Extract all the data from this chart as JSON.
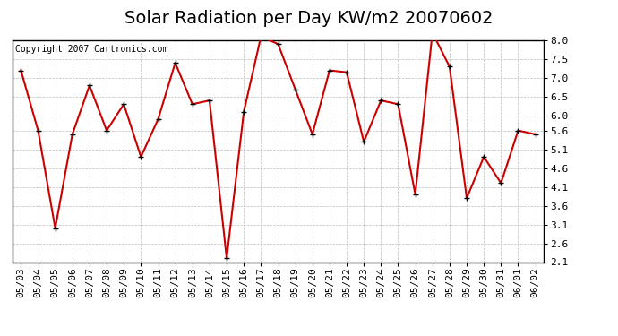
{
  "title": "Solar Radiation per Day KW/m2 20070602",
  "copyright": "Copyright 2007 Cartronics.com",
  "dates": [
    "05/03",
    "05/04",
    "05/05",
    "05/06",
    "05/07",
    "05/08",
    "05/09",
    "05/10",
    "05/11",
    "05/12",
    "05/13",
    "05/14",
    "05/15",
    "05/16",
    "05/17",
    "05/18",
    "05/19",
    "05/20",
    "05/21",
    "05/22",
    "05/23",
    "05/24",
    "05/25",
    "05/26",
    "05/27",
    "05/28",
    "05/29",
    "05/30",
    "05/31",
    "06/01",
    "06/02"
  ],
  "values": [
    7.2,
    5.6,
    3.0,
    5.5,
    6.8,
    5.6,
    6.3,
    4.9,
    5.9,
    7.4,
    6.3,
    6.4,
    2.2,
    6.1,
    8.1,
    7.9,
    6.7,
    5.5,
    7.2,
    7.15,
    5.3,
    6.4,
    6.3,
    3.9,
    8.2,
    7.3,
    3.8,
    4.9,
    4.2,
    5.6,
    5.5
  ],
  "line_color": "#cc0000",
  "marker_color": "#000000",
  "bg_color": "#ffffff",
  "grid_color": "#bbbbbb",
  "title_fontsize": 14,
  "copyright_fontsize": 7,
  "tick_fontsize": 8,
  "ylim_min": 2.1,
  "ylim_max": 8.0,
  "yticks": [
    2.1,
    2.6,
    3.1,
    3.6,
    4.1,
    4.6,
    5.1,
    5.6,
    6.0,
    6.5,
    7.0,
    7.5,
    8.0
  ]
}
